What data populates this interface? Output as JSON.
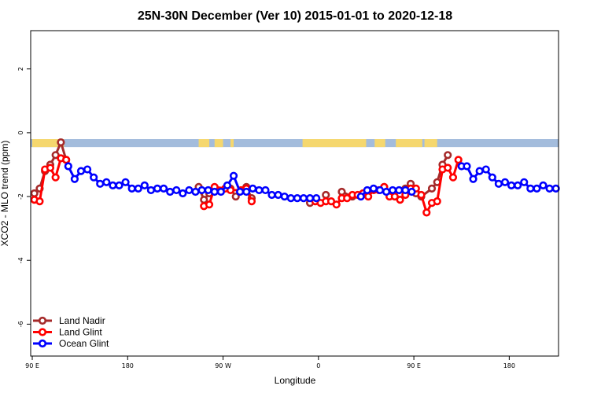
{
  "chart_data": {
    "type": "line",
    "title": "25N-30N December (Ver 10)   2015-01-01 to 2020-12-18",
    "xlabel": "Longitude",
    "ylabel": "XCO2 - MLO trend (ppm)",
    "xlim": [
      0,
      495
    ],
    "ylim": [
      -7,
      3.2
    ],
    "x_ticks": [
      {
        "value": 0,
        "label": "90 E"
      },
      {
        "value": 90,
        "label": "180"
      },
      {
        "value": 180,
        "label": "90 W"
      },
      {
        "value": 270,
        "label": "0"
      },
      {
        "value": 360,
        "label": "90 E"
      },
      {
        "value": 450,
        "label": "180"
      }
    ],
    "y_ticks": [
      {
        "value": 2,
        "label": "2"
      },
      {
        "value": 0,
        "label": "0"
      },
      {
        "value": -2,
        "label": "-2"
      },
      {
        "value": -4,
        "label": "-4"
      },
      {
        "value": -6,
        "label": "-6"
      }
    ],
    "legend_position": "bottom-left",
    "land_mask": {
      "y_top": -0.2,
      "y_bottom": -0.45,
      "ocean_color": "#a3bcdc",
      "land_color": "#f5d76e",
      "land_spans": [
        [
          0,
          30
        ],
        [
          157,
          167
        ],
        [
          172,
          180
        ],
        [
          187,
          190
        ],
        [
          255,
          315
        ],
        [
          323,
          333
        ],
        [
          343,
          368
        ],
        [
          370,
          382
        ]
      ]
    },
    "series": [
      {
        "name": "Land Nadir",
        "color": "#a52a2a",
        "x": [
          2,
          7,
          12,
          17,
          22,
          27,
          32,
          157,
          162,
          167,
          172,
          187,
          192,
          202,
          207,
          262,
          277,
          292,
          302,
          332,
          337,
          352,
          357,
          362,
          367,
          377,
          382,
          387,
          392
        ],
        "y": [
          -1.9,
          -1.75,
          -1.2,
          -1.0,
          -0.7,
          -0.3,
          -0.85,
          -1.7,
          -2.1,
          -1.9,
          -1.75,
          -1.75,
          -2.0,
          -1.7,
          -2.05,
          -2.2,
          -1.95,
          -1.85,
          -2.0,
          -1.7,
          -1.9,
          -1.75,
          -1.6,
          -1.9,
          -2.0,
          -1.75,
          -1.55,
          -1.0,
          -0.7
        ]
      },
      {
        "name": "Land Glint",
        "color": "#ff0000",
        "x": [
          2,
          7,
          12,
          17,
          22,
          27,
          32,
          162,
          167,
          172,
          182,
          187,
          197,
          202,
          207,
          267,
          272,
          277,
          282,
          287,
          292,
          297,
          302,
          307,
          312,
          317,
          322,
          327,
          332,
          337,
          342,
          347,
          352,
          357,
          362,
          367,
          372,
          377,
          382,
          387,
          392,
          397,
          402
        ],
        "y": [
          -2.1,
          -2.15,
          -1.15,
          -1.1,
          -1.4,
          -0.8,
          -0.85,
          -2.3,
          -2.25,
          -1.7,
          -1.75,
          -1.8,
          -1.8,
          -1.75,
          -2.15,
          -2.15,
          -2.2,
          -2.15,
          -2.15,
          -2.25,
          -2.05,
          -2.05,
          -1.95,
          -1.95,
          -1.9,
          -2.0,
          -1.8,
          -1.8,
          -1.7,
          -2.0,
          -2.0,
          -2.1,
          -1.95,
          -1.75,
          -1.75,
          -1.95,
          -2.5,
          -2.2,
          -2.15,
          -1.15,
          -1.1,
          -1.4,
          -0.85
        ]
      },
      {
        "name": "Ocean Glint",
        "color": "#0000ff",
        "x": [
          34,
          40,
          46,
          52,
          58,
          64,
          70,
          76,
          82,
          88,
          94,
          100,
          106,
          112,
          118,
          124,
          130,
          136,
          142,
          148,
          154,
          160,
          166,
          172,
          178,
          184,
          190,
          196,
          202,
          208,
          214,
          220,
          226,
          232,
          238,
          244,
          250,
          256,
          262,
          268,
          310,
          316,
          322,
          328,
          334,
          340,
          346,
          352,
          358,
          405,
          410,
          416,
          422,
          428,
          434,
          440,
          446,
          452,
          458,
          464,
          470,
          476,
          482,
          488,
          494
        ],
        "y": [
          -1.05,
          -1.45,
          -1.2,
          -1.15,
          -1.4,
          -1.6,
          -1.55,
          -1.65,
          -1.65,
          -1.55,
          -1.75,
          -1.75,
          -1.65,
          -1.8,
          -1.75,
          -1.75,
          -1.85,
          -1.8,
          -1.9,
          -1.8,
          -1.85,
          -1.8,
          -1.8,
          -1.85,
          -1.85,
          -1.65,
          -1.35,
          -1.85,
          -1.85,
          -1.75,
          -1.8,
          -1.8,
          -1.95,
          -1.95,
          -2.0,
          -2.05,
          -2.05,
          -2.05,
          -2.05,
          -2.05,
          -2.0,
          -1.8,
          -1.75,
          -1.8,
          -1.85,
          -1.8,
          -1.8,
          -1.8,
          -1.85,
          -1.05,
          -1.05,
          -1.45,
          -1.2,
          -1.15,
          -1.4,
          -1.6,
          -1.55,
          -1.65,
          -1.65,
          -1.55,
          -1.75,
          -1.75,
          -1.65,
          -1.75,
          -1.75
        ]
      }
    ]
  }
}
